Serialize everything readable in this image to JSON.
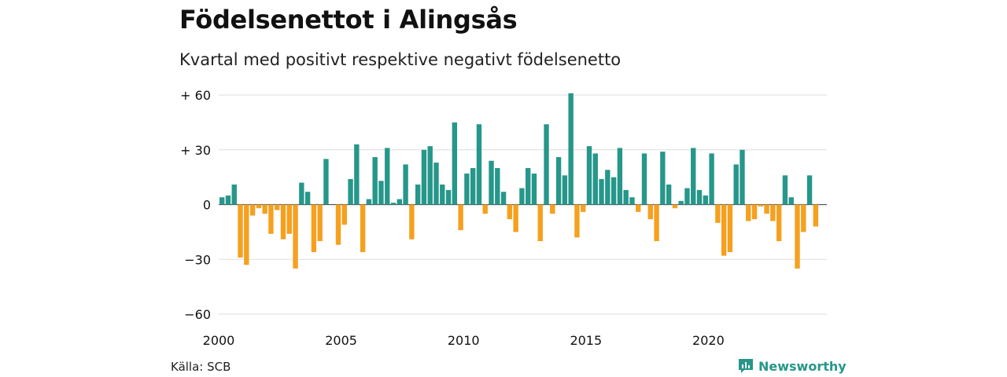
{
  "header": {
    "title": "Födelsenettot i Alingsås",
    "subtitle": "Kvartal med positivt respektive negativt födelsenetto"
  },
  "footer": {
    "source": "Källa: SCB",
    "brand": "Newsworthy"
  },
  "colors": {
    "positive": "#26978a",
    "negative": "#f5a01f",
    "grid": "#dddddd",
    "brand": "#26978a"
  },
  "chart_data": {
    "type": "bar",
    "title": "Födelsenettot i Alingsås",
    "subtitle": "Kvartal med positivt respektive negativt födelsenetto",
    "x_start": "2000 Q1",
    "ylim": [
      -60,
      60
    ],
    "yticks": [
      {
        "value": 60,
        "label": "+ 60"
      },
      {
        "value": 30,
        "label": "+ 30"
      },
      {
        "value": 0,
        "label": "0"
      },
      {
        "value": -30,
        "label": "−30"
      },
      {
        "value": -60,
        "label": "−60"
      }
    ],
    "xticks": [
      "2000",
      "2005",
      "2010",
      "2015",
      "2020"
    ],
    "grid": true,
    "values": [
      4,
      5,
      11,
      -29,
      -33,
      -6,
      -2,
      -5,
      -16,
      -3,
      -19,
      -16,
      -35,
      12,
      7,
      -26,
      -20,
      25,
      0,
      -22,
      -11,
      14,
      33,
      -26,
      3,
      26,
      13,
      31,
      1,
      3,
      22,
      -19,
      11,
      30,
      32,
      23,
      11,
      8,
      45,
      -14,
      17,
      20,
      44,
      -5,
      24,
      20,
      7,
      -8,
      -15,
      9,
      20,
      17,
      -20,
      44,
      -5,
      26,
      16,
      61,
      -18,
      -4,
      32,
      28,
      14,
      19,
      15,
      31,
      8,
      4,
      -4,
      28,
      -8,
      -20,
      29,
      11,
      -2,
      2,
      9,
      31,
      8,
      5,
      28,
      -10,
      -28,
      -26,
      22,
      30,
      -9,
      -8,
      -1,
      -5,
      -9,
      -20,
      16,
      4,
      -35,
      -15,
      16,
      -12
    ]
  }
}
